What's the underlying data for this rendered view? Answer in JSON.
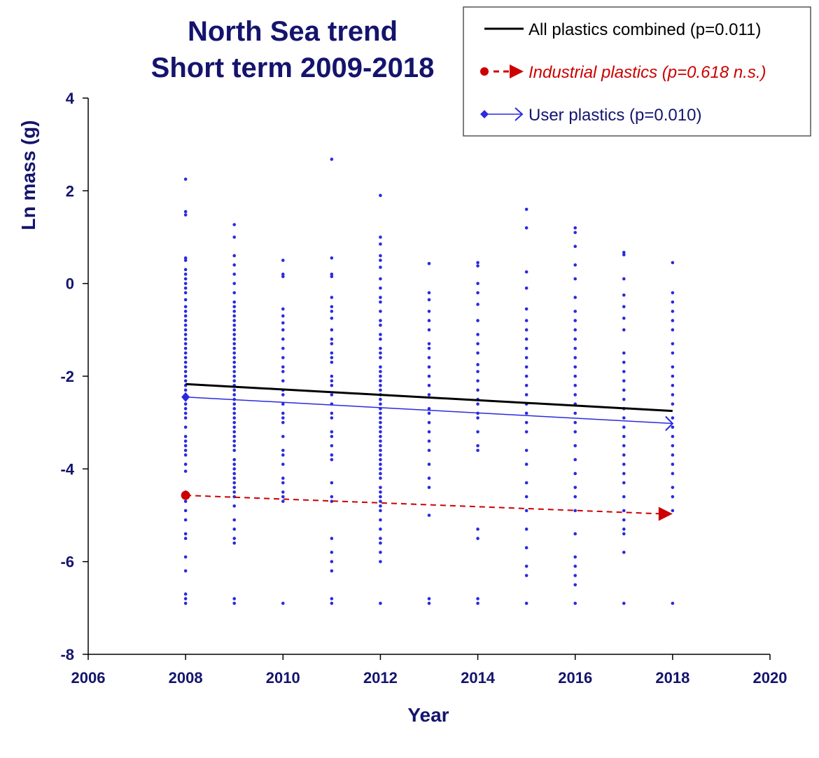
{
  "chart_data": {
    "type": "scatter",
    "title": [
      "North Sea trend",
      "Short term 2009-2018"
    ],
    "xlabel": "Year",
    "ylabel": "Ln mass (g)",
    "xlim": [
      2006,
      2020
    ],
    "ylim": [
      -8,
      4
    ],
    "xticks": [
      "2006",
      "2008",
      "2010",
      "2012",
      "2014",
      "2016",
      "2018",
      "2020"
    ],
    "yticks": [
      "4",
      "2",
      "0",
      "-2",
      "-4",
      "-6",
      "-8"
    ],
    "grid": false,
    "legend_position": "top-right",
    "colors": {
      "title": "#14146e",
      "points": "#2a2ae0",
      "all": "#000000",
      "industrial": "#cc0000",
      "user": "#2a2ae0"
    },
    "points": [
      {
        "x": 2008,
        "y": [
          2.25,
          1.55,
          1.48,
          0.55,
          0.5,
          0.3,
          0.2,
          0.1,
          0,
          -0.1,
          -0.2,
          -0.35,
          -0.5,
          -0.6,
          -0.7,
          -0.8,
          -0.9,
          -1,
          -1.1,
          -1.2,
          -1.3,
          -1.4,
          -1.5,
          -1.6,
          -1.7,
          -1.8,
          -1.9,
          -2,
          -2.1,
          -2.2,
          -2.3,
          -2.45,
          -2.6,
          -2.7,
          -2.8,
          -2.9,
          -3.1,
          -3.3,
          -3.4,
          -3.5,
          -3.6,
          -3.7,
          -3.9,
          -4.05,
          -4.5,
          -4.7,
          -4.9,
          -5.1,
          -5.4,
          -5.5,
          -5.9,
          -6.2,
          -6.7,
          -6.8,
          -6.9
        ]
      },
      {
        "x": 2009,
        "y": [
          1.27,
          1.0,
          0.6,
          0.4,
          0.2,
          0,
          -0.2,
          -0.4,
          -0.5,
          -0.6,
          -0.7,
          -0.8,
          -0.9,
          -1,
          -1.1,
          -1.2,
          -1.3,
          -1.4,
          -1.5,
          -1.6,
          -1.7,
          -1.8,
          -1.9,
          -2,
          -2.1,
          -2.2,
          -2.3,
          -2.4,
          -2.5,
          -2.6,
          -2.7,
          -2.8,
          -2.9,
          -3,
          -3.1,
          -3.2,
          -3.3,
          -3.4,
          -3.5,
          -3.6,
          -3.8,
          -3.9,
          -4,
          -4.1,
          -4.2,
          -4.3,
          -4.4,
          -4.5,
          -4.6,
          -4.8,
          -5.1,
          -5.3,
          -5.5,
          -5.6,
          -6.8,
          -6.9
        ]
      },
      {
        "x": 2010,
        "y": [
          0.5,
          0.2,
          0.15,
          -0.55,
          -0.7,
          -0.85,
          -1,
          -1.2,
          -1.4,
          -1.6,
          -1.8,
          -1.9,
          -2.1,
          -2.3,
          -2.4,
          -2.6,
          -2.8,
          -2.9,
          -3,
          -3.3,
          -3.6,
          -3.7,
          -3.9,
          -4.2,
          -4.3,
          -4.5,
          -4.6,
          -4.7,
          -6.9
        ]
      },
      {
        "x": 2011,
        "y": [
          2.68,
          0.55,
          0.2,
          0.15,
          -0.3,
          -0.5,
          -0.6,
          -0.75,
          -1,
          -1.2,
          -1.3,
          -1.5,
          -1.6,
          -1.7,
          -2,
          -2.1,
          -2.2,
          -2.4,
          -2.6,
          -2.8,
          -2.9,
          -3.2,
          -3.3,
          -3.5,
          -3.7,
          -3.8,
          -4.3,
          -4.6,
          -4.7,
          -5.5,
          -5.8,
          -6,
          -6.2,
          -6.8,
          -6.9
        ]
      },
      {
        "x": 2012,
        "y": [
          1.9,
          1.0,
          0.85,
          0.6,
          0.5,
          0.35,
          0.1,
          -0.1,
          -0.3,
          -0.4,
          -0.6,
          -0.8,
          -0.9,
          -1.1,
          -1.2,
          -1.4,
          -1.5,
          -1.6,
          -1.8,
          -1.9,
          -2,
          -2.1,
          -2.2,
          -2.3,
          -2.4,
          -2.5,
          -2.6,
          -2.7,
          -2.8,
          -2.9,
          -3,
          -3.1,
          -3.2,
          -3.3,
          -3.4,
          -3.5,
          -3.6,
          -3.7,
          -3.8,
          -3.9,
          -4,
          -4.1,
          -4.2,
          -4.4,
          -4.5,
          -4.6,
          -4.7,
          -4.8,
          -4.9,
          -5.1,
          -5.3,
          -5.5,
          -5.6,
          -5.8,
          -6,
          -6.9
        ]
      },
      {
        "x": 2013,
        "y": [
          0.43,
          -0.2,
          -0.35,
          -0.6,
          -0.8,
          -1,
          -1.3,
          -1.4,
          -1.6,
          -1.8,
          -2,
          -2.2,
          -2.4,
          -2.7,
          -2.8,
          -3,
          -3.2,
          -3.4,
          -3.6,
          -3.9,
          -4.2,
          -4.4,
          -5,
          -6.8,
          -6.9
        ]
      },
      {
        "x": 2014,
        "y": [
          0.45,
          0.38,
          0,
          -0.2,
          -0.45,
          -0.8,
          -1.1,
          -1.3,
          -1.5,
          -1.75,
          -1.9,
          -2.1,
          -2.3,
          -2.5,
          -2.6,
          -2.8,
          -2.9,
          -3.2,
          -3.5,
          -3.6,
          -5.3,
          -5.5,
          -6.8,
          -6.9
        ]
      },
      {
        "x": 2015,
        "y": [
          1.6,
          1.2,
          0.25,
          -0.1,
          -0.55,
          -0.8,
          -1.0,
          -1.2,
          -1.4,
          -1.6,
          -1.8,
          -2,
          -2.2,
          -2.4,
          -2.6,
          -2.8,
          -3,
          -3.2,
          -3.6,
          -3.9,
          -4.3,
          -4.6,
          -4.9,
          -5.3,
          -5.7,
          -6.1,
          -6.3,
          -6.9
        ]
      },
      {
        "x": 2016,
        "y": [
          1.2,
          1.1,
          0.8,
          0.4,
          0.1,
          -0.3,
          -0.6,
          -0.8,
          -1,
          -1.2,
          -1.4,
          -1.6,
          -1.8,
          -2,
          -2.2,
          -2.4,
          -2.6,
          -2.8,
          -3,
          -3.2,
          -3.5,
          -3.8,
          -4.1,
          -4.4,
          -4.6,
          -4.9,
          -5.4,
          -5.9,
          -6.1,
          -6.3,
          -6.5,
          -6.9
        ]
      },
      {
        "x": 2017,
        "y": [
          0.67,
          0.62,
          0.1,
          -0.25,
          -0.5,
          -0.75,
          -1.0,
          -1.5,
          -1.7,
          -1.9,
          -2.1,
          -2.3,
          -2.5,
          -2.7,
          -2.9,
          -3.1,
          -3.3,
          -3.5,
          -3.7,
          -3.9,
          -4.1,
          -4.3,
          -4.6,
          -4.9,
          -5.1,
          -5.3,
          -5.4,
          -5.8,
          -6.9
        ]
      },
      {
        "x": 2018,
        "y": [
          0.45,
          -0.2,
          -0.4,
          -0.6,
          -0.8,
          -1.0,
          -1.3,
          -1.5,
          -1.8,
          -2,
          -2.2,
          -2.4,
          -2.6,
          -2.9,
          -3.1,
          -3.3,
          -3.5,
          -3.7,
          -3.9,
          -4.1,
          -4.4,
          -4.6,
          -4.9,
          -6.9
        ]
      }
    ],
    "series": [
      {
        "name": "All plastics combined (p=0.011)",
        "x": [
          2008,
          2018
        ],
        "y": [
          -2.17,
          -2.75
        ]
      },
      {
        "name": "Industrial plastics (p=0.618 n.s.)",
        "x": [
          2008,
          2018
        ],
        "y": [
          -4.57,
          -4.97
        ]
      },
      {
        "name": "User plastics (p=0.010)",
        "x": [
          2008,
          2018
        ],
        "y": [
          -2.45,
          -3.02
        ]
      }
    ]
  }
}
